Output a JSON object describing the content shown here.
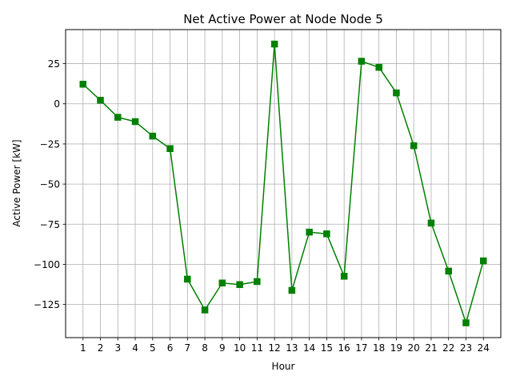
{
  "chart_data": {
    "type": "line",
    "title": "Net Active Power at Node Node 5",
    "xlabel": "Hour",
    "ylabel": "Active Power [kW]",
    "x": [
      1,
      2,
      3,
      4,
      5,
      6,
      7,
      8,
      9,
      10,
      11,
      12,
      13,
      14,
      15,
      16,
      17,
      18,
      19,
      20,
      21,
      22,
      23,
      24
    ],
    "x_ticks": [
      "1",
      "2",
      "3",
      "4",
      "5",
      "6",
      "7",
      "8",
      "9",
      "10",
      "11",
      "12",
      "13",
      "14",
      "15",
      "16",
      "17",
      "18",
      "19",
      "20",
      "21",
      "22",
      "23",
      "24"
    ],
    "y_ticks": [
      25,
      0,
      -25,
      -50,
      -75,
      -100,
      -125
    ],
    "y_tick_labels": [
      "25",
      "0",
      "−25",
      "−50",
      "−75",
      "−100",
      "−125"
    ],
    "xlim": [
      0.0,
      25.0
    ],
    "ylim": [
      -145.6,
      46.2
    ],
    "grid": true,
    "series": [
      {
        "marker": "square",
        "color": "#008000",
        "values": [
          12.2,
          2.2,
          -8.4,
          -11.1,
          -20.1,
          -27.9,
          -109.2,
          -128.4,
          -111.6,
          -112.6,
          -110.7,
          37.2,
          -116.2,
          -79.9,
          -81.0,
          -107.4,
          26.5,
          22.7,
          6.8,
          -26.1,
          -74.3,
          -104.2,
          -136.4,
          -97.8
        ]
      }
    ]
  }
}
